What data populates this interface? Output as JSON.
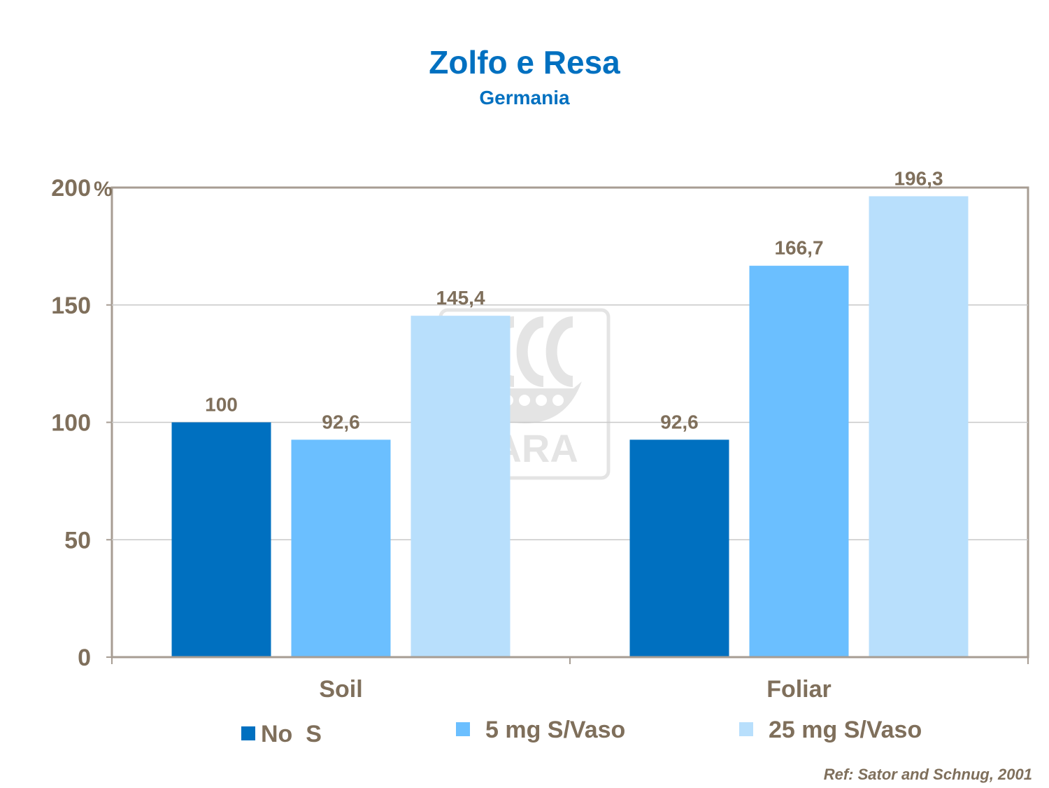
{
  "chart_data": {
    "type": "bar",
    "title": "Zolfo e Resa",
    "subtitle": "Germania",
    "categories": [
      "Soil",
      "Foliar"
    ],
    "series": [
      {
        "name": "No  S",
        "values": [
          100,
          92.6
        ],
        "value_labels": [
          "100",
          "92,6"
        ],
        "color": "#0070c0"
      },
      {
        "name": "5 mg S/Vaso",
        "values": [
          92.6,
          166.7
        ],
        "value_labels": [
          "92,6",
          "166,7"
        ],
        "color": "#6bbfff"
      },
      {
        "name": "25 mg S/Vaso",
        "values": [
          145.4,
          196.3
        ],
        "value_labels": [
          "145,4",
          "196,3"
        ],
        "color": "#b8dffc"
      }
    ],
    "y_ticks": [
      "0",
      "50",
      "100",
      "150",
      "200"
    ],
    "y_unit": "%",
    "ylim": [
      0,
      200
    ],
    "grid": true,
    "legend_position": "bottom"
  },
  "reference": "Ref: Sator and Schnug, 2001",
  "watermark": "YARA",
  "colors": {
    "title": "#0070c0",
    "text": "#7f6f5b",
    "grid": "#c8c8c8",
    "frame": "#a79d93"
  }
}
